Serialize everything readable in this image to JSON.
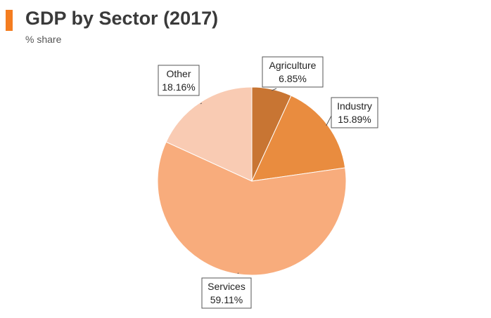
{
  "chart_data": {
    "type": "pie",
    "title": "GDP by Sector (2017)",
    "subtitle": "% share",
    "legend": "none",
    "slices": [
      {
        "name": "Agriculture",
        "value": 6.85,
        "label": "6.85%",
        "color": "#c87533"
      },
      {
        "name": "Industry",
        "value": 15.89,
        "label": "15.89%",
        "color": "#e98c3f"
      },
      {
        "name": "Services",
        "value": 59.11,
        "label": "59.11%",
        "color": "#f8ac7c"
      },
      {
        "name": "Other",
        "value": 18.16,
        "label": "18.16%",
        "color": "#f9cbb3"
      }
    ]
  },
  "colors": {
    "accent": "#f47d20",
    "title": "#3a3a3a"
  }
}
